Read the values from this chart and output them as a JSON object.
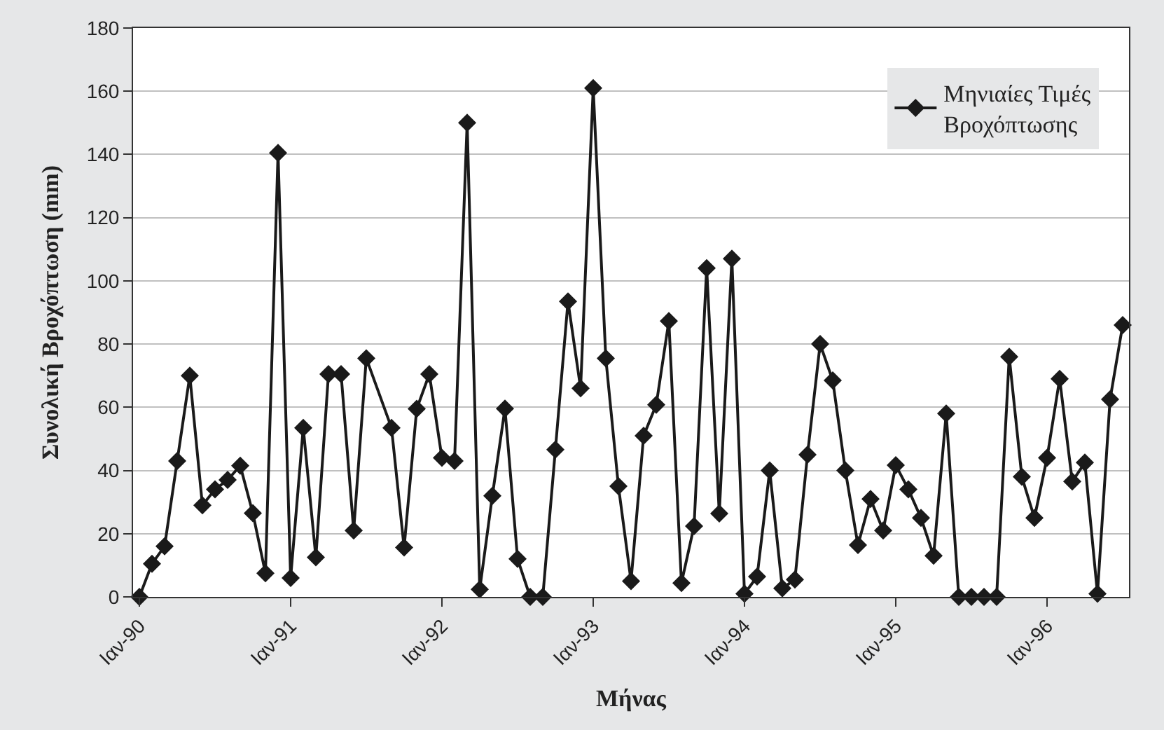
{
  "chart_data": {
    "type": "line",
    "xlabel": "Μήνας",
    "ylabel": "Συνολική Βροχόπτωση (mm)",
    "categories": [
      "Ιαν-90",
      null,
      null,
      null,
      null,
      null,
      null,
      null,
      null,
      null,
      null,
      null,
      "Ιαν-91",
      null,
      null,
      null,
      null,
      null,
      null,
      null,
      null,
      null,
      null,
      null,
      "Ιαν-92",
      null,
      null,
      null,
      null,
      null,
      null,
      null,
      null,
      null,
      null,
      null,
      "Ιαν-93",
      null,
      null,
      null,
      null,
      null,
      null,
      null,
      null,
      null,
      null,
      null,
      "Ιαν-94",
      null,
      null,
      null,
      null,
      null,
      null,
      null,
      null,
      null,
      null,
      null,
      "Ιαν-95",
      null,
      null,
      null,
      null,
      null,
      null,
      null,
      null,
      null,
      null,
      null,
      "Ιαν-96",
      null,
      null,
      null,
      null,
      null,
      null
    ],
    "series": [
      {
        "name": "Μηνιαίες Τιμές Βροχόπτωσης",
        "color": "#1a1a1a",
        "values": [
          0,
          10.5,
          16,
          43,
          70,
          29,
          34,
          37,
          41.5,
          26.5,
          7.5,
          140.5,
          6,
          53.5,
          12.5,
          70.5,
          70.5,
          21,
          75.5,
          null,
          53.5,
          15.6,
          59.5,
          70.5,
          44,
          43,
          150,
          2.4,
          32,
          59.6,
          12,
          0,
          0,
          46.6,
          93.5,
          66,
          161,
          75.5,
          35,
          5,
          51,
          60.8,
          87.3,
          4.4,
          22.4,
          104,
          26.4,
          107,
          1,
          6.4,
          40,
          2.7,
          5.5,
          45,
          80,
          68.5,
          40,
          16.4,
          31,
          21,
          41.7,
          34,
          25,
          13,
          58,
          0,
          0,
          0,
          0,
          76,
          38,
          25,
          44,
          69,
          36.5,
          42.5,
          1,
          62.5,
          86
        ]
      }
    ],
    "ylim": [
      0,
      180
    ],
    "yticks": [
      0,
      20,
      40,
      60,
      80,
      100,
      120,
      140,
      160,
      180
    ],
    "grid": "y",
    "legend": "top right",
    "marker": "diamond",
    "line_style": "solid"
  }
}
